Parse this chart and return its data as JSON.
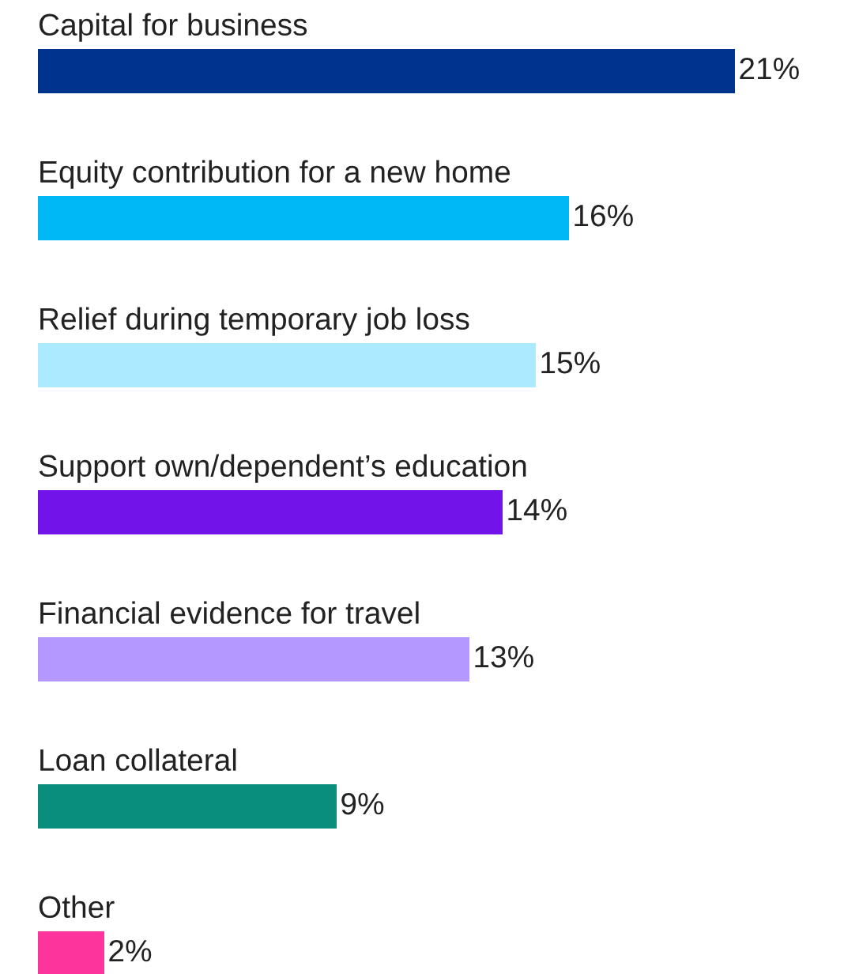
{
  "chart_data": {
    "type": "bar",
    "orientation": "horizontal",
    "categories": [
      "Capital for business",
      "Equity contribution for a new home",
      "Relief during temporary job loss",
      "Support own/dependent’s education",
      "Financial evidence for travel",
      "Loan collateral",
      "Other"
    ],
    "values": [
      21,
      16,
      15,
      14,
      13,
      9,
      2
    ],
    "colors": [
      "#00338d",
      "#00b8f5",
      "#aceaff",
      "#7213ea",
      "#b497ff",
      "#098e7e",
      "#fd349c"
    ],
    "value_labels": [
      "21%",
      "16%",
      "15%",
      "14%",
      "13%",
      "9%",
      "2%"
    ]
  }
}
